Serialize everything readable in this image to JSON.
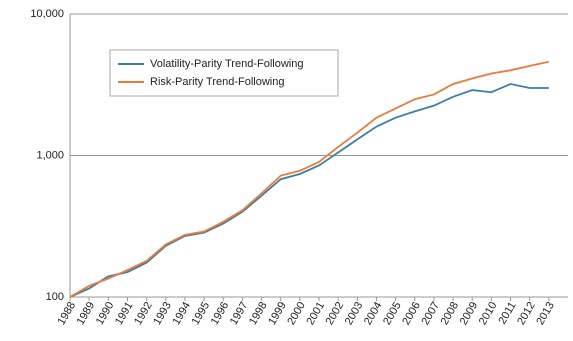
{
  "chart_data": {
    "type": "line",
    "x": [
      1988,
      1989,
      1990,
      1991,
      1992,
      1993,
      1994,
      1995,
      1996,
      1997,
      1998,
      1999,
      2000,
      2001,
      2002,
      2003,
      2004,
      2005,
      2006,
      2007,
      2008,
      2009,
      2010,
      2011,
      2012,
      2013
    ],
    "series": [
      {
        "name": "Volatility-Parity Trend-Following",
        "color": "#3b7fa8",
        "values": [
          100,
          115,
          140,
          150,
          175,
          230,
          270,
          285,
          330,
          400,
          520,
          680,
          740,
          850,
          1050,
          1300,
          1600,
          1850,
          2050,
          2250,
          2600,
          2900,
          2800,
          3200,
          3000,
          3000
        ]
      },
      {
        "name": "Risk-Parity Trend-Following",
        "color": "#ec7a3a",
        "values": [
          100,
          120,
          135,
          155,
          180,
          235,
          275,
          290,
          340,
          410,
          540,
          720,
          780,
          900,
          1150,
          1450,
          1850,
          2150,
          2500,
          2700,
          3200,
          3500,
          3800,
          4000,
          4300,
          4600
        ]
      }
    ],
    "xlim": [
      1988,
      2014
    ],
    "xticks": [
      1988,
      1989,
      1990,
      1991,
      1992,
      1993,
      1994,
      1995,
      1996,
      1997,
      1998,
      1999,
      2000,
      2001,
      2002,
      2003,
      2004,
      2005,
      2006,
      2007,
      2008,
      2009,
      2010,
      2011,
      2012,
      2013
    ],
    "ylim": [
      100,
      10000
    ],
    "yticks": [
      100,
      {
        "value": 1000,
        "label": "1,000"
      },
      {
        "value": 10000,
        "label": "10,000"
      }
    ],
    "log_scale_y": true,
    "grid": true,
    "legend": "upper-left"
  }
}
